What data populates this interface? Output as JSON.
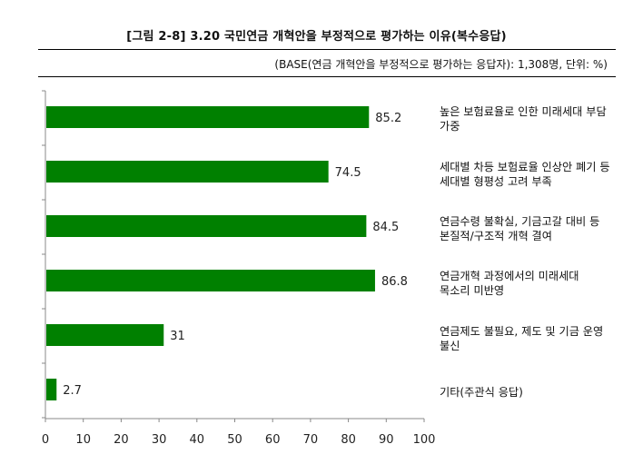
{
  "figure_title": "[그림 2-8] 3.20 국민연금 개혁안을 부정적으로 평가하는 이유(복수응답)",
  "base_note": "(BASE(연금 개혁안을 부정적으로 평가하는 응답자): 1,308명, 단위: %)",
  "chart_data": {
    "type": "bar",
    "orientation": "horizontal",
    "categories": [
      "높은 보험료율로 인한 미래세대 부담 가중",
      "세대별 차등 보험료율 인상안 폐기 등 세대별 형평성 고려 부족",
      "연금수령 불확실, 기금고갈 대비 등 본질적/구조적 개혁 결여",
      "연금개혁 과정에서의 미래세대 목소리 미반영",
      "연금제도 불필요, 제도 및 기금 운영 불신",
      "기타(주관식 응답)"
    ],
    "values": [
      85.2,
      74.5,
      84.5,
      86.8,
      31,
      2.7
    ],
    "value_labels": [
      "85.2",
      "74.5",
      "84.5",
      "86.8",
      "31",
      "2.7"
    ],
    "xlim": [
      0,
      100
    ],
    "x_ticks": [
      "0",
      "10",
      "20",
      "30",
      "40",
      "50",
      "60",
      "70",
      "80",
      "90",
      "100"
    ],
    "bar_color": "#008000",
    "grid": false,
    "legend": "none"
  }
}
